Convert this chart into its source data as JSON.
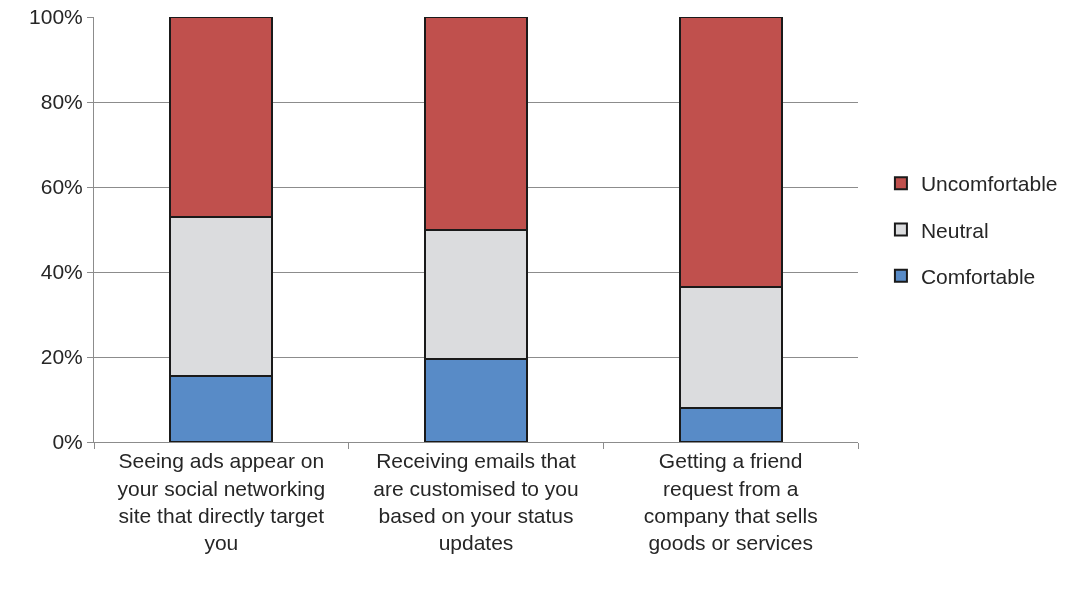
{
  "chart_data": {
    "type": "bar",
    "stacked": true,
    "categories": [
      "Seeing ads appear on your social networking site that directly target you",
      "Receiving emails that are customised to you based on your status updates",
      "Getting a friend request from a company that sells goods or services"
    ],
    "series": [
      {
        "name": "Comfortable",
        "color": "#588bc7",
        "values": [
          15.5,
          19.5,
          8
        ]
      },
      {
        "name": "Neutral",
        "color": "#dbdcde",
        "values": [
          37.5,
          30.5,
          28.5
        ]
      },
      {
        "name": "Uncomfortable",
        "color": "#c0504d",
        "values": [
          47,
          50,
          63.5
        ]
      }
    ],
    "ylim": [
      0,
      100
    ],
    "yticks": [
      {
        "value": 0,
        "label": "0%"
      },
      {
        "value": 20,
        "label": "20%"
      },
      {
        "value": 40,
        "label": "40%"
      },
      {
        "value": 60,
        "label": "60%"
      },
      {
        "value": 80,
        "label": "80%"
      },
      {
        "value": 100,
        "label": "100%"
      }
    ],
    "grid": "y",
    "legend": "right"
  }
}
